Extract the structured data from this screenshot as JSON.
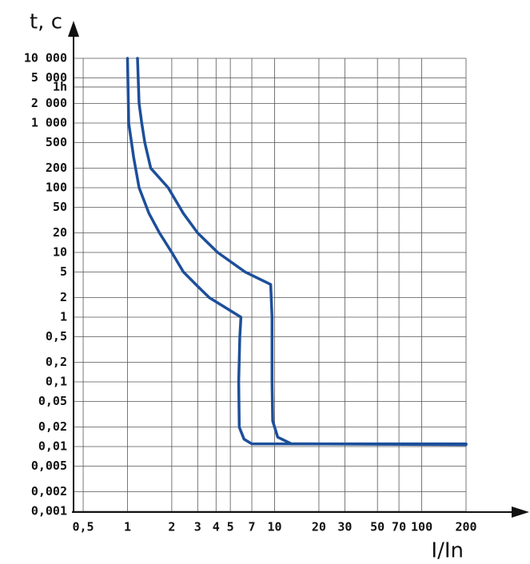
{
  "chart_data": {
    "type": "line",
    "x_label": "I/In",
    "y_label": "t, c",
    "xlog": true,
    "ylog": true,
    "grid": true,
    "xlim": [
      0.43,
      200
    ],
    "ylim": [
      0.001,
      10000
    ],
    "xticks": [
      {
        "value": 0.5,
        "label": "0,5"
      },
      1,
      2,
      3,
      4,
      5,
      7,
      10,
      20,
      30,
      50,
      70,
      100,
      200
    ],
    "yticks": [
      {
        "value": 10000,
        "label": "10 000"
      },
      {
        "value": 5000,
        "label": "5 000"
      },
      {
        "value": 3600,
        "label": "1h"
      },
      {
        "value": 2000,
        "label": "2 000"
      },
      {
        "value": 1000,
        "label": "1 000"
      },
      500,
      200,
      100,
      50,
      20,
      10,
      5,
      2,
      1,
      {
        "value": 0.5,
        "label": "0,5"
      },
      {
        "value": 0.2,
        "label": "0,2"
      },
      {
        "value": 0.1,
        "label": "0,1"
      },
      {
        "value": 0.05,
        "label": "0,05"
      },
      {
        "value": 0.02,
        "label": "0,02"
      },
      {
        "value": 0.01,
        "label": "0,01"
      },
      {
        "value": 0.005,
        "label": "0,005"
      },
      {
        "value": 0.002,
        "label": "0,002"
      },
      {
        "value": 0.001,
        "label": "0,001"
      }
    ],
    "series": [
      {
        "color": "#1d4f9a",
        "x": [
          1,
          1.02,
          1.1,
          1.2,
          1.4,
          1.65,
          2.0,
          2.4,
          3.0,
          3.6,
          5.9,
          5.8,
          5.7,
          5.75,
          6.2,
          7.0,
          200
        ],
        "values": [
          10000,
          1000,
          300,
          100,
          40,
          20,
          10,
          5,
          3,
          2,
          1,
          0.5,
          0.1,
          0.02,
          0.013,
          0.011,
          0.011
        ]
      },
      {
        "color": "#1d4f9a",
        "x": [
          1.17,
          1.2,
          1.25,
          1.31,
          1.44,
          1.89,
          2.4,
          3.0,
          4.1,
          6.3,
          9.4,
          9.6,
          9.6,
          9.7,
          10.5,
          13,
          200
        ],
        "values": [
          10000,
          2000,
          1000,
          500,
          200,
          100,
          40,
          20,
          10,
          5,
          3.2,
          1,
          0.1,
          0.025,
          0.014,
          0.011,
          0.0107
        ]
      }
    ]
  }
}
